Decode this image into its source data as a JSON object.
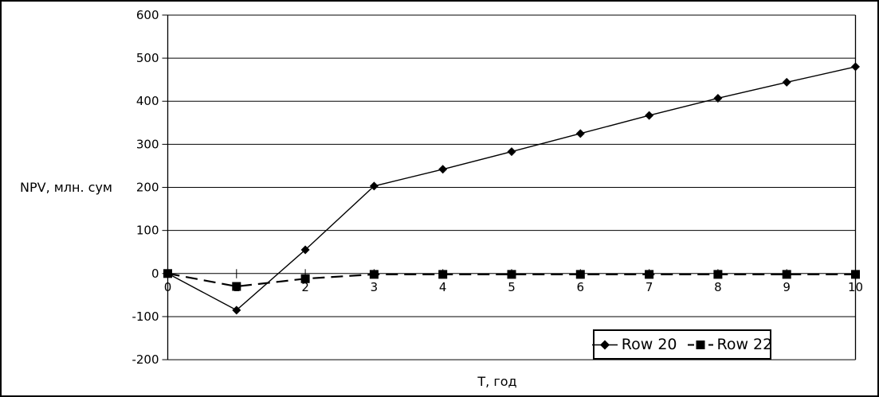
{
  "chart_data": {
    "type": "line",
    "title": "",
    "xlabel": "Т, год",
    "ylabel": "NPV, млн. сум",
    "x": [
      0,
      1,
      2,
      3,
      4,
      5,
      6,
      7,
      8,
      9,
      10
    ],
    "ylim": [
      -200,
      600
    ],
    "ytick_step": 100,
    "grid": true,
    "legend_position": "inside-bottom-right",
    "colors": {
      "foreground": "#000000",
      "background": "#ffffff"
    },
    "series": [
      {
        "name": "Row 20",
        "marker": "diamond",
        "line_style": "solid",
        "values": [
          0,
          -85,
          55,
          203,
          242,
          283,
          325,
          367,
          407,
          444,
          480
        ]
      },
      {
        "name": "Row 22",
        "marker": "square",
        "line_style": "dashed",
        "values": [
          0,
          -30,
          -12,
          -2,
          -2,
          -2,
          -2,
          -2,
          -2,
          -2,
          -2
        ]
      }
    ]
  }
}
